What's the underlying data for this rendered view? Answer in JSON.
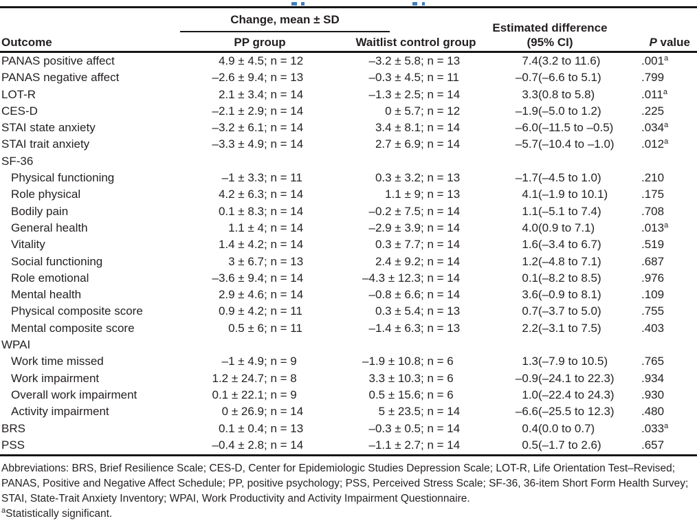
{
  "table": {
    "header": {
      "spanner": "Change, mean ± SD",
      "outcome": "Outcome",
      "pp_group": "PP group",
      "waitlist_group": "Waitlist control group",
      "estimated_diff_line1": "Estimated difference",
      "estimated_diff_line2": "(95% CI)",
      "p_italic": "P",
      "p_rest": " value"
    },
    "rows": [
      {
        "label": "PANAS positive affect",
        "indent": 0,
        "section": false,
        "pp_m": "4.9 ± 4.5",
        "pp_n": "; n = 12",
        "wl_m": "–3.2 ± 5.8",
        "wl_n": "; n = 13",
        "d_m": "7.4",
        "d_n": " (3.2 to 11.6)",
        "p": ".001",
        "sig": "a"
      },
      {
        "label": "PANAS negative affect",
        "indent": 0,
        "section": false,
        "pp_m": "–2.6 ± 9.4",
        "pp_n": "; n = 13",
        "wl_m": "–0.3 ± 4.5",
        "wl_n": "; n = 11",
        "d_m": "–0.7",
        "d_n": " (–6.6 to 5.1)",
        "p": ".799",
        "sig": ""
      },
      {
        "label": "LOT-R",
        "indent": 0,
        "section": false,
        "pp_m": "2.1 ± 3.4",
        "pp_n": "; n = 14",
        "wl_m": "–1.3 ± 2.5",
        "wl_n": "; n = 14",
        "d_m": "3.3",
        "d_n": " (0.8 to 5.8)",
        "p": ".011",
        "sig": "a"
      },
      {
        "label": "CES-D",
        "indent": 0,
        "section": false,
        "pp_m": "–2.1 ± 2.9",
        "pp_n": "; n = 14",
        "wl_m": "0 ± 5.7",
        "wl_n": "; n = 12",
        "d_m": "–1.9",
        "d_n": " (–5.0 to 1.2)",
        "p": ".225",
        "sig": ""
      },
      {
        "label": "STAI state anxiety",
        "indent": 0,
        "section": false,
        "pp_m": "–3.2 ± 6.1",
        "pp_n": "; n = 14",
        "wl_m": "3.4 ± 8.1",
        "wl_n": "; n = 14",
        "d_m": "–6.0",
        "d_n": " (–11.5 to –0.5)",
        "p": ".034",
        "sig": "a"
      },
      {
        "label": "STAI trait anxiety",
        "indent": 0,
        "section": false,
        "pp_m": "–3.3 ± 4.9",
        "pp_n": "; n = 14",
        "wl_m": "2.7 ± 6.9",
        "wl_n": "; n = 14",
        "d_m": "–5.7",
        "d_n": " (–10.4 to –1.0)",
        "p": ".012",
        "sig": "a"
      },
      {
        "label": "SF-36",
        "indent": 0,
        "section": true
      },
      {
        "label": "Physical functioning",
        "indent": 1,
        "section": false,
        "pp_m": "–1 ± 3.3",
        "pp_n": "; n = 11",
        "wl_m": "0.3 ± 3.2",
        "wl_n": "; n = 13",
        "d_m": "–1.7",
        "d_n": " (–4.5 to 1.0)",
        "p": ".210",
        "sig": ""
      },
      {
        "label": "Role physical",
        "indent": 1,
        "section": false,
        "pp_m": "4.2 ± 6.3",
        "pp_n": "; n = 14",
        "wl_m": "1.1 ± 9",
        "wl_n": "; n = 13",
        "d_m": "4.1",
        "d_n": " (–1.9 to 10.1)",
        "p": ".175",
        "sig": ""
      },
      {
        "label": "Bodily pain",
        "indent": 1,
        "section": false,
        "pp_m": "0.1 ± 8.3",
        "pp_n": "; n = 14",
        "wl_m": "–0.2 ± 7.5",
        "wl_n": "; n = 14",
        "d_m": "1.1",
        "d_n": " (–5.1 to 7.4)",
        "p": ".708",
        "sig": ""
      },
      {
        "label": "General health",
        "indent": 1,
        "section": false,
        "pp_m": "1.1 ± 4",
        "pp_n": "; n = 14",
        "wl_m": "–2.9 ± 3.9",
        "wl_n": "; n = 14",
        "d_m": "4.0",
        "d_n": " (0.9 to 7.1)",
        "p": ".013",
        "sig": "a"
      },
      {
        "label": "Vitality",
        "indent": 1,
        "section": false,
        "pp_m": "1.4 ± 4.2",
        "pp_n": "; n = 14",
        "wl_m": "0.3 ± 7.7",
        "wl_n": "; n = 14",
        "d_m": "1.6",
        "d_n": " (–3.4 to 6.7)",
        "p": ".519",
        "sig": ""
      },
      {
        "label": "Social functioning",
        "indent": 1,
        "section": false,
        "pp_m": "3 ± 6.7",
        "pp_n": "; n = 13",
        "wl_m": "2.4 ± 9.2",
        "wl_n": "; n = 14",
        "d_m": "1.2",
        "d_n": " (–4.8 to 7.1)",
        "p": ".687",
        "sig": ""
      },
      {
        "label": "Role emotional",
        "indent": 1,
        "section": false,
        "pp_m": "–3.6 ± 9.4",
        "pp_n": "; n = 14",
        "wl_m": "–4.3 ± 12.3",
        "wl_n": "; n = 14",
        "d_m": "0.1",
        "d_n": " (–8.2 to 8.5)",
        "p": ".976",
        "sig": ""
      },
      {
        "label": "Mental health",
        "indent": 1,
        "section": false,
        "pp_m": "2.9 ± 4.6",
        "pp_n": "; n = 14",
        "wl_m": "–0.8 ± 6.6",
        "wl_n": "; n = 14",
        "d_m": "3.6",
        "d_n": " (–0.9 to 8.1)",
        "p": ".109",
        "sig": ""
      },
      {
        "label": "Physical composite score",
        "indent": 1,
        "section": false,
        "pp_m": "0.9 ± 4.2",
        "pp_n": "; n = 11",
        "wl_m": "0.3 ± 5.4",
        "wl_n": "; n = 13",
        "d_m": "0.7",
        "d_n": " (–3.7 to 5.0)",
        "p": ".755",
        "sig": ""
      },
      {
        "label": "Mental composite score",
        "indent": 1,
        "section": false,
        "pp_m": "0.5 ± 6",
        "pp_n": "; n = 11",
        "wl_m": "–1.4 ± 6.3",
        "wl_n": "; n = 13",
        "d_m": "2.2",
        "d_n": " (–3.1 to 7.5)",
        "p": ".403",
        "sig": ""
      },
      {
        "label": "WPAI",
        "indent": 0,
        "section": true
      },
      {
        "label": "Work time missed",
        "indent": 1,
        "section": false,
        "pp_m": "–1 ± 4.9",
        "pp_n": "; n = 9",
        "wl_m": "–1.9 ± 10.8",
        "wl_n": "; n = 6",
        "d_m": "1.3",
        "d_n": " (–7.9 to 10.5)",
        "p": ".765",
        "sig": ""
      },
      {
        "label": "Work impairment",
        "indent": 1,
        "section": false,
        "pp_m": "1.2 ± 24.7",
        "pp_n": "; n = 8",
        "wl_m": "3.3 ± 10.3",
        "wl_n": "; n = 6",
        "d_m": "–0.9",
        "d_n": " (–24.1 to 22.3)",
        "p": ".934",
        "sig": ""
      },
      {
        "label": "Overall work impairment",
        "indent": 1,
        "section": false,
        "pp_m": "0.1 ± 22.1",
        "pp_n": "; n = 9",
        "wl_m": "0.5 ± 15.6",
        "wl_n": "; n = 6",
        "d_m": "1.0",
        "d_n": " (–22.4 to 24.3)",
        "p": ".930",
        "sig": ""
      },
      {
        "label": "Activity impairment",
        "indent": 1,
        "section": false,
        "pp_m": "0 ± 26.9",
        "pp_n": "; n = 14",
        "wl_m": "5 ± 23.5",
        "wl_n": "; n = 14",
        "d_m": "–6.6",
        "d_n": " (–25.5 to 12.3)",
        "p": ".480",
        "sig": ""
      },
      {
        "label": "BRS",
        "indent": 0,
        "section": false,
        "pp_m": "0.1 ± 0.4",
        "pp_n": "; n = 13",
        "wl_m": "–0.3 ± 0.5",
        "wl_n": "; n = 14",
        "d_m": "0.4",
        "d_n": " (0.0 to 0.7)",
        "p": ".033",
        "sig": "a"
      },
      {
        "label": "PSS",
        "indent": 0,
        "section": false,
        "pp_m": "–0.4 ± 2.8",
        "pp_n": "; n = 14",
        "wl_m": "–1.1 ± 2.7",
        "wl_n": "; n = 14",
        "d_m": "0.5",
        "d_n": " (–1.7 to 2.6)",
        "p": ".657",
        "sig": ""
      }
    ]
  },
  "footnotes": {
    "abbreviations": "Abbreviations: BRS, Brief Resilience Scale; CES-D, Center for Epidemiologic Studies Depression Scale; LOT-R, Life Orientation Test–Revised; PANAS, Positive and Negative Affect Schedule; PP, positive psychology; PSS, Perceived Stress Scale; SF-36, 36-item Short Form Health Survey; STAI, State-Trait Anxiety Inventory; WPAI, Work Productivity and Activity Impairment Questionnaire.",
    "sig_marker": "a",
    "sig_text": "Statistically significant."
  },
  "colors": {
    "text": "#231f20",
    "rule": "#161616",
    "title_accent": "#3f7fbe"
  }
}
